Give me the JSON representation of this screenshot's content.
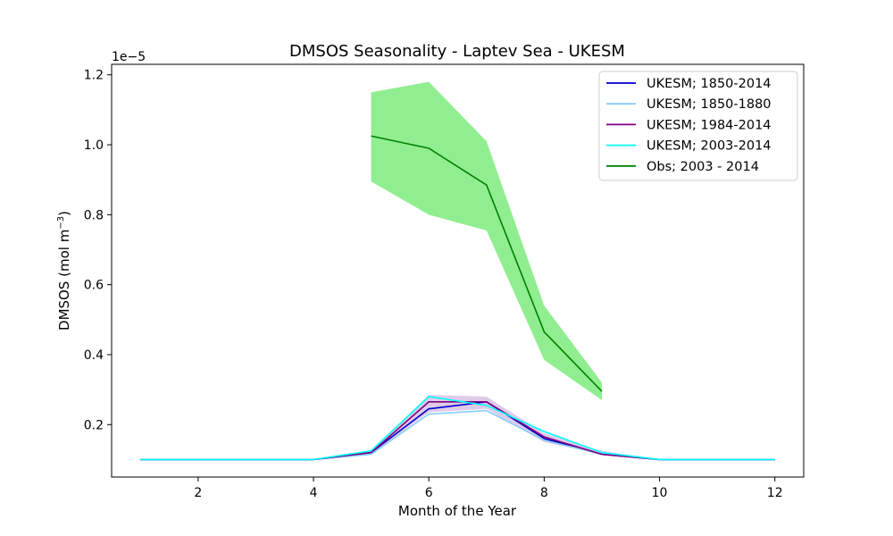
{
  "chart_data": {
    "type": "line",
    "title": "DMSOS Seasonality - Laptev Sea - UKESM",
    "xlabel": "Month of the Year",
    "ylabel": "DMSOS (mol m",
    "ylabel_sup": "−3",
    "ylabel_end": ")",
    "y_offset_label": "1e−5",
    "xlim": [
      0.5,
      12.5
    ],
    "ylim": [
      0.05,
      1.23
    ],
    "xticks": [
      2,
      4,
      6,
      8,
      10,
      12
    ],
    "yticks": [
      0.2,
      0.4,
      0.6,
      0.8,
      1.0,
      1.2
    ],
    "ytick_labels": [
      "0.2",
      "0.4",
      "0.6",
      "0.8",
      "1.0",
      "1.2"
    ],
    "legend_position": "top-right",
    "grid": false,
    "bands": [
      {
        "color": "#c9a8d8",
        "opacity": 0.6,
        "x": [
          1,
          2,
          3,
          4,
          5,
          6,
          7,
          8,
          9,
          10,
          11,
          12
        ],
        "lower": [
          0.1,
          0.1,
          0.1,
          0.1,
          0.115,
          0.235,
          0.245,
          0.15,
          0.115,
          0.1,
          0.1,
          0.1
        ],
        "upper": [
          0.1,
          0.1,
          0.1,
          0.1,
          0.125,
          0.285,
          0.28,
          0.175,
          0.125,
          0.1,
          0.1,
          0.1
        ]
      },
      {
        "color": "#90ee90",
        "opacity": 1,
        "x": [
          5,
          6,
          7,
          8,
          9
        ],
        "lower": [
          0.895,
          0.8,
          0.755,
          0.385,
          0.27
        ],
        "upper": [
          1.15,
          1.18,
          1.01,
          0.54,
          0.32
        ]
      }
    ],
    "series": [
      {
        "name": "UKESM; 1850-2014",
        "color": "#0000cd",
        "x": [
          1,
          2,
          3,
          4,
          5,
          6,
          7,
          8,
          9,
          10,
          11,
          12
        ],
        "values": [
          0.1,
          0.1,
          0.1,
          0.1,
          0.12,
          0.245,
          0.265,
          0.16,
          0.115,
          0.1,
          0.1,
          0.1
        ]
      },
      {
        "name": "UKESM; 1850-1880",
        "color": "#87cefa",
        "x": [
          1,
          2,
          3,
          4,
          5,
          6,
          7,
          8,
          9,
          10,
          11,
          12
        ],
        "values": [
          0.1,
          0.1,
          0.1,
          0.1,
          0.115,
          0.23,
          0.24,
          0.155,
          0.115,
          0.1,
          0.1,
          0.1
        ]
      },
      {
        "name": "UKESM; 1984-2014",
        "color": "#800080",
        "x": [
          1,
          2,
          3,
          4,
          5,
          6,
          7,
          8,
          9,
          10,
          11,
          12
        ],
        "values": [
          0.1,
          0.1,
          0.1,
          0.1,
          0.12,
          0.265,
          0.265,
          0.165,
          0.115,
          0.1,
          0.1,
          0.1
        ]
      },
      {
        "name": "UKESM; 2003-2014",
        "color": "#00ffff",
        "x": [
          1,
          2,
          3,
          4,
          5,
          6,
          7,
          8,
          9,
          10,
          11,
          12
        ],
        "values": [
          0.1,
          0.1,
          0.1,
          0.1,
          0.125,
          0.28,
          0.255,
          0.18,
          0.12,
          0.1,
          0.1,
          0.1
        ]
      },
      {
        "name": "Obs; 2003 - 2014",
        "color": "#008000",
        "x": [
          5,
          6,
          7,
          8,
          9
        ],
        "values": [
          1.025,
          0.99,
          0.885,
          0.465,
          0.295
        ]
      }
    ]
  }
}
